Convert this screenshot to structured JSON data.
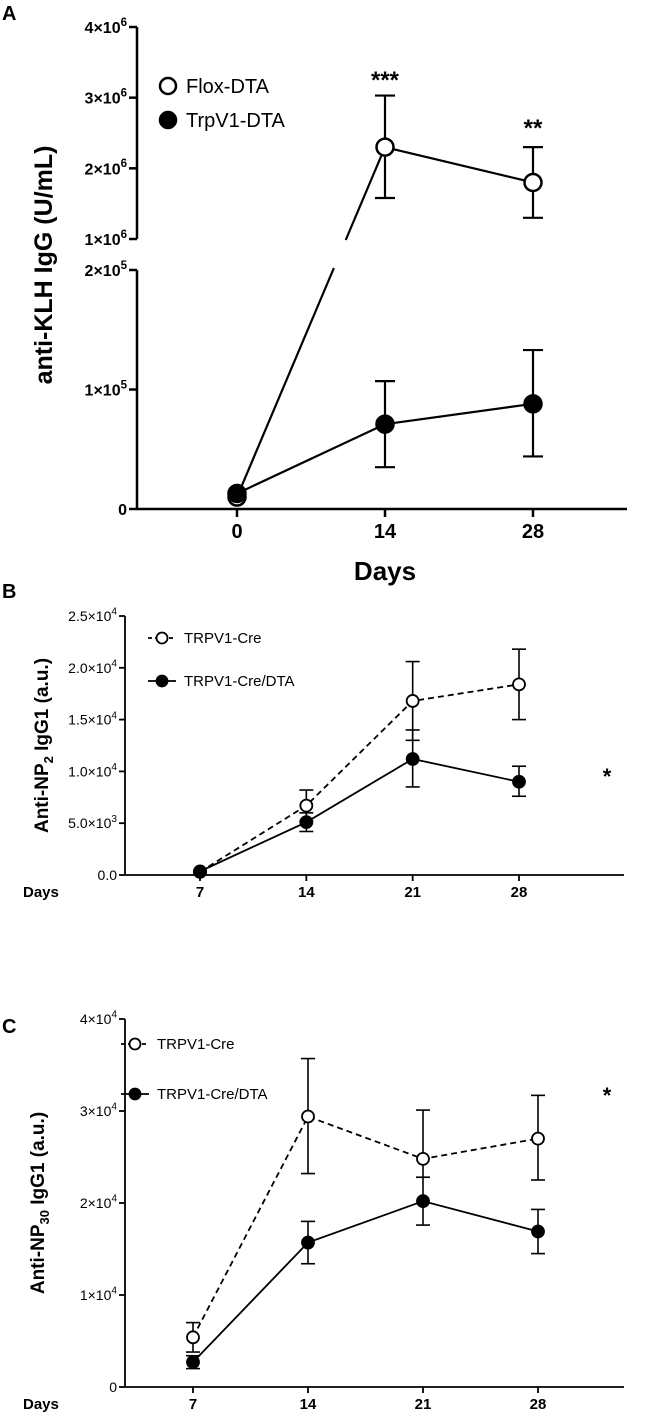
{
  "chart_data": [
    {
      "panel": "A",
      "type": "line",
      "ylabel": "anti-KLH IgG (U/mL)",
      "xlabel": "Days",
      "broken_y_axis": true,
      "lower_ylim": [
        0,
        200000
      ],
      "upper_ylim": [
        1000000,
        4000000
      ],
      "yticks_lower": [
        {
          "v": 0,
          "b": "0",
          "e": ""
        },
        {
          "v": 100000,
          "b": "1×10",
          "e": "5"
        },
        {
          "v": 200000,
          "b": "2×10",
          "e": "5"
        }
      ],
      "yticks_upper": [
        {
          "v": 1000000,
          "b": "1×10",
          "e": "6"
        },
        {
          "v": 2000000,
          "b": "2×10",
          "e": "6"
        },
        {
          "v": 3000000,
          "b": "3×10",
          "e": "6"
        },
        {
          "v": 4000000,
          "b": "4×10",
          "e": "6"
        }
      ],
      "xticks": [
        "0",
        "14",
        "28"
      ],
      "x": [
        0,
        14,
        28
      ],
      "xlim": [
        -9,
        40
      ],
      "legend": "top-left",
      "series": [
        {
          "name": "Flox-DTA",
          "marker": "open",
          "line": "solid",
          "values": [
            10000,
            2300000,
            1800000
          ],
          "err_low": [
            6000,
            1580000,
            1300000
          ],
          "err_high": [
            14000,
            3030000,
            2300000
          ]
        },
        {
          "name": "TrpV1-DTA",
          "marker": "filled",
          "line": "solid",
          "values": [
            13000,
            71000,
            88000
          ],
          "err_low": [
            9000,
            35000,
            44000
          ],
          "err_high": [
            17000,
            107000,
            133000
          ]
        }
      ],
      "annotations": [
        {
          "text": "***",
          "x": 14
        },
        {
          "text": "**",
          "x": 28
        }
      ]
    },
    {
      "panel": "B",
      "type": "line",
      "ylabel_pre": "Anti-NP",
      "ylabel_sub": "2",
      "ylabel_post": " IgG1 (a.u.)",
      "xlabel": "Days",
      "ylim": [
        0,
        25000
      ],
      "yticks": [
        {
          "v": 0,
          "b": "0.0",
          "e": ""
        },
        {
          "v": 5000,
          "b": "5.0×10",
          "e": "3"
        },
        {
          "v": 10000,
          "b": "1.0×10",
          "e": "4"
        },
        {
          "v": 15000,
          "b": "1.5×10",
          "e": "4"
        },
        {
          "v": 20000,
          "b": "2.0×10",
          "e": "4"
        },
        {
          "v": 25000,
          "b": "2.5×10",
          "e": "4"
        }
      ],
      "xticks": [
        "7",
        "14",
        "21",
        "28"
      ],
      "x": [
        7,
        14,
        21,
        28
      ],
      "xlim": [
        -2,
        31
      ],
      "legend": "top-left",
      "series": [
        {
          "name": "TRPV1-Cre",
          "marker": "open",
          "line": "dashed",
          "values": [
            300,
            6700,
            16800,
            18400
          ],
          "err_low": [
            200,
            5200,
            13000,
            15000
          ],
          "err_high": [
            400,
            8200,
            20600,
            21800
          ]
        },
        {
          "name": "TRPV1-Cre/DTA",
          "marker": "filled",
          "line": "solid",
          "values": [
            350,
            5100,
            11200,
            9000
          ],
          "err_low": [
            250,
            4200,
            8500,
            7600
          ],
          "err_high": [
            450,
            6000,
            14000,
            10500
          ]
        }
      ],
      "annotations": [
        {
          "text": "*",
          "x": 28
        }
      ]
    },
    {
      "panel": "C",
      "type": "line",
      "ylabel_pre": "Anti-NP",
      "ylabel_sub": "30",
      "ylabel_post": " IgG1 (a.u.)",
      "xlabel": "Days",
      "ylim": [
        0,
        40000
      ],
      "yticks": [
        {
          "v": 0,
          "b": "0",
          "e": ""
        },
        {
          "v": 10000,
          "b": "1×10",
          "e": "4"
        },
        {
          "v": 20000,
          "b": "2×10",
          "e": "4"
        },
        {
          "v": 30000,
          "b": "3×10",
          "e": "4"
        },
        {
          "v": 40000,
          "b": "4×10",
          "e": "4"
        }
      ],
      "xticks": [
        "7",
        "14",
        "21",
        "28"
      ],
      "x": [
        7,
        14,
        21,
        28
      ],
      "xlim": [
        -2,
        31
      ],
      "legend": "top-left",
      "series": [
        {
          "name": "TRPV1-Cre",
          "marker": "open",
          "line": "dashed",
          "values": [
            5400,
            29400,
            24800,
            27000
          ],
          "err_low": [
            3800,
            23200,
            22800,
            22500
          ],
          "err_high": [
            7000,
            35700,
            30100,
            31700
          ]
        },
        {
          "name": "TRPV1-Cre/DTA",
          "marker": "filled",
          "line": "solid",
          "values": [
            2700,
            15700,
            20200,
            16900
          ],
          "err_low": [
            2000,
            13400,
            17600,
            14500
          ],
          "err_high": [
            3400,
            18000,
            22800,
            19300
          ]
        }
      ],
      "annotations": [
        {
          "text": "*",
          "x": 28
        }
      ]
    }
  ]
}
